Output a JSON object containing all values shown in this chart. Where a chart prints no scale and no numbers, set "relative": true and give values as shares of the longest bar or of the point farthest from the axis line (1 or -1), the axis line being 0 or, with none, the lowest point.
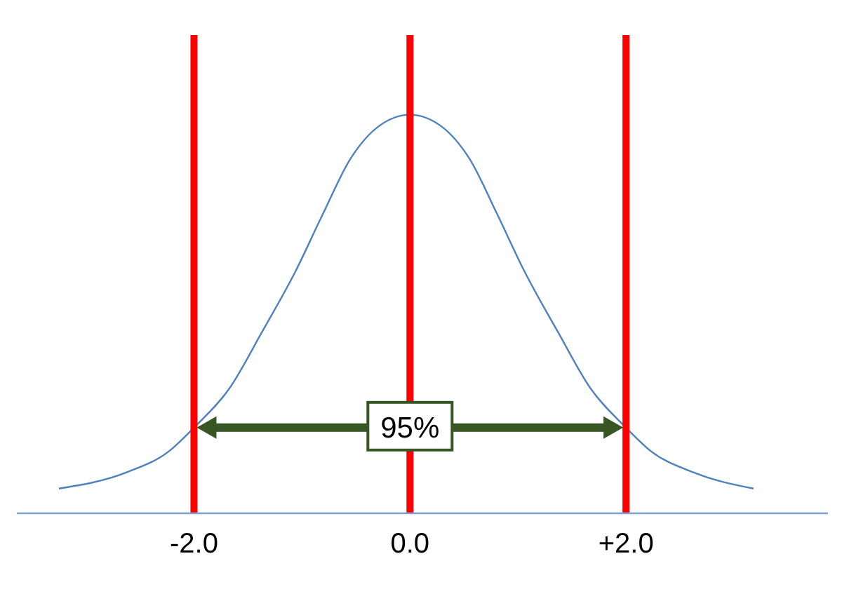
{
  "chart_data": {
    "type": "line",
    "relative": true,
    "x": [
      -3.25,
      -2.62,
      -2.23,
      -2.0,
      -1.67,
      -1.37,
      -1.06,
      -0.81,
      -0.55,
      -0.29,
      0,
      0.29,
      0.55,
      0.81,
      1.06,
      1.37,
      1.67,
      2.0,
      2.23,
      2.62,
      3.18
    ],
    "series": [
      {
        "color": "#4f81bd",
        "values": [
          0.062,
          0.103,
          0.156,
          0.215,
          0.314,
          0.455,
          0.607,
          0.749,
          0.89,
          0.971,
          1,
          0.971,
          0.89,
          0.749,
          0.607,
          0.455,
          0.314,
          0.215,
          0.156,
          0.103,
          0.062
        ]
      }
    ],
    "xlim": [
      -3.64,
      3.87
    ],
    "xticks": [
      {
        "value": -2,
        "label": "-2.0"
      },
      {
        "value": 0,
        "label": "0.0"
      },
      {
        "value": 2,
        "label": "+2.0"
      }
    ],
    "ref_lines": [
      {
        "axis": "x",
        "value": -2,
        "color": "#ff0000"
      },
      {
        "axis": "x",
        "value": 0,
        "color": "#ff0000"
      },
      {
        "axis": "x",
        "value": 2,
        "color": "#ff0000"
      }
    ],
    "annotations": [
      {
        "text": "95%",
        "x": 0,
        "y": 0.215
      }
    ],
    "grid": false,
    "legend": false,
    "marker": "none",
    "line_style": "solid"
  }
}
